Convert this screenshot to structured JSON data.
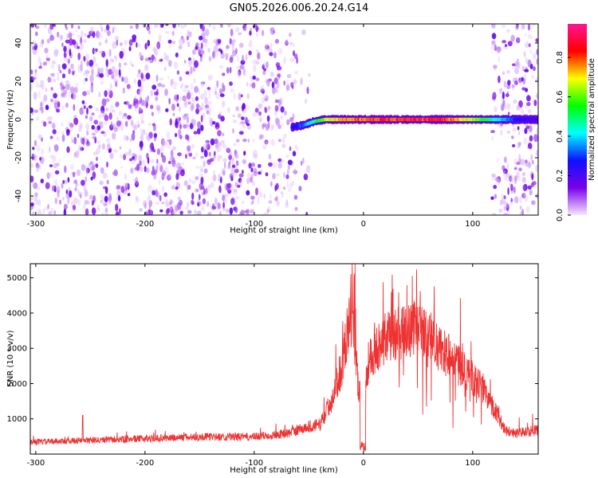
{
  "title": "GN05.2026.006.20.24.G14",
  "chart_data": [
    {
      "type": "heatmap",
      "xlabel": "Height of straight line (km)",
      "ylabel": "Frequency (Hz)",
      "xlim": [
        -305,
        160
      ],
      "ylim": [
        -50,
        50
      ],
      "x_ticks": [
        -300,
        -200,
        -100,
        0,
        100
      ],
      "y_ticks": [
        -40,
        -20,
        0,
        20,
        40
      ],
      "colorbar": {
        "label": "Normalized spectral amplitude",
        "range": [
          0.0,
          0.97
        ],
        "ticks": [
          0.0,
          0.2,
          0.4,
          0.6,
          0.8
        ],
        "tick_labels": [
          "0.0",
          "0.2",
          "0.4",
          "0.6",
          "0.8"
        ],
        "colormap": [
          "#f6e8ff",
          "#7a00e8",
          "#1010ff",
          "#00ffff",
          "#00ff00",
          "#ffff00",
          "#ff0000",
          "#ff1493"
        ]
      },
      "noise_regions_x": [
        [
          -305,
          -48
        ],
        [
          118,
          160
        ]
      ],
      "ridge": {
        "frequency_hz": 0,
        "points": [
          {
            "x": -65,
            "f": -4,
            "amp": 0.25
          },
          {
            "x": -55,
            "f": -3,
            "amp": 0.35
          },
          {
            "x": -45,
            "f": -1,
            "amp": 0.5
          },
          {
            "x": -35,
            "f": 0,
            "amp": 0.7
          },
          {
            "x": -20,
            "f": 0,
            "amp": 0.8
          },
          {
            "x": 0,
            "f": 0,
            "amp": 0.85
          },
          {
            "x": 30,
            "f": 0,
            "amp": 0.9
          },
          {
            "x": 75,
            "f": 0,
            "amp": 0.9
          },
          {
            "x": 115,
            "f": 0,
            "amp": 0.55
          },
          {
            "x": 140,
            "f": 0,
            "amp": 0.3
          },
          {
            "x": 160,
            "f": 0,
            "amp": 0.2
          }
        ]
      }
    },
    {
      "type": "line",
      "xlabel": "Height of straight line (km)",
      "ylabel": "SNR (10 * v/v)",
      "xlim": [
        -305,
        160
      ],
      "ylim": [
        0,
        5400
      ],
      "x_ticks": [
        -300,
        -200,
        -100,
        0,
        100
      ],
      "y_ticks": [
        1000,
        2000,
        3000,
        4000,
        5000
      ],
      "color": "#ee3333",
      "envelope": {
        "x": [
          -305,
          -250,
          -200,
          -150,
          -100,
          -70,
          -50,
          -40,
          -30,
          -20,
          -15,
          -10,
          -5,
          0,
          5,
          10,
          20,
          30,
          40,
          50,
          60,
          70,
          80,
          90,
          100,
          110,
          120,
          130,
          140,
          150,
          160
        ],
        "y": [
          350,
          400,
          450,
          500,
          500,
          600,
          800,
          850,
          1500,
          2500,
          3500,
          4200,
          2000,
          1500,
          2800,
          3000,
          3400,
          3500,
          3650,
          3700,
          3400,
          3100,
          2800,
          2500,
          2200,
          1900,
          1300,
          700,
          600,
          650,
          700
        ]
      }
    }
  ]
}
